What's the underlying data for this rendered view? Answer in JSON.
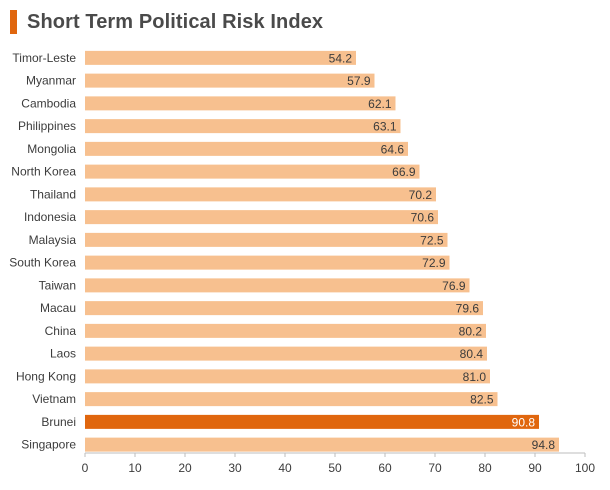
{
  "title": "Short Term Political Risk Index",
  "colors": {
    "accent": "#E0660E",
    "bar": "#F7C08F",
    "highlight": "#E0660E",
    "axis": "#bdbdbd",
    "text": "#3c3c3c"
  },
  "chart_data": {
    "type": "bar",
    "orientation": "horizontal",
    "title": "Short Term Political Risk Index",
    "xlabel": "",
    "ylabel": "",
    "xlim": [
      0,
      100
    ],
    "x_ticks": [
      0,
      10,
      20,
      30,
      40,
      50,
      60,
      70,
      80,
      90,
      100
    ],
    "grid": false,
    "categories": [
      "Timor-Leste",
      "Myanmar",
      "Cambodia",
      "Philippines",
      "Mongolia",
      "North Korea",
      "Thailand",
      "Indonesia",
      "Malaysia",
      "South Korea",
      "Taiwan",
      "Macau",
      "China",
      "Laos",
      "Hong Kong",
      "Vietnam",
      "Brunei",
      "Singapore"
    ],
    "values": [
      54.2,
      57.9,
      62.1,
      63.1,
      64.6,
      66.9,
      70.2,
      70.6,
      72.5,
      72.9,
      76.9,
      79.6,
      80.2,
      80.4,
      81.0,
      82.5,
      90.8,
      94.8
    ],
    "value_labels": [
      "54.2",
      "57.9",
      "62.1",
      "63.1",
      "64.6",
      "66.9",
      "70.2",
      "70.6",
      "72.5",
      "72.9",
      "76.9",
      "79.6",
      "80.2",
      "80.4",
      "81.0",
      "82.5",
      "90.8",
      "94.8"
    ],
    "highlighted": [
      "Brunei"
    ]
  }
}
